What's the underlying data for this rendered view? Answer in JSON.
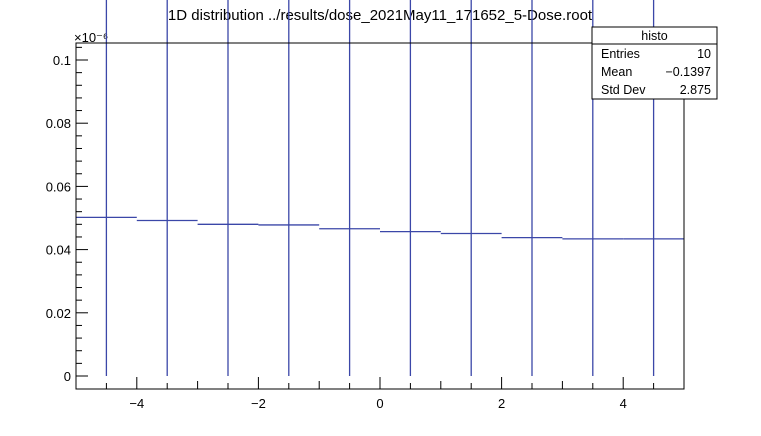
{
  "chart_data": {
    "type": "bar",
    "title": "1D distribution ../results/dose_2021May11_171652_5-Dose.root",
    "xlabel": "",
    "ylabel": "",
    "xlim": [
      -5,
      5
    ],
    "ylim": [
      0,
      0.105
    ],
    "y_exponent": "×10⁻⁶",
    "grid": false,
    "bins": [
      {
        "x": -4.5,
        "value": 0.0502,
        "error": 0.0999
      },
      {
        "x": -3.5,
        "value": 0.0492,
        "error": 0.098
      },
      {
        "x": -2.5,
        "value": 0.048,
        "error": 0.0958
      },
      {
        "x": -1.5,
        "value": 0.0478,
        "error": 0.0952
      },
      {
        "x": -0.5,
        "value": 0.0466,
        "error": 0.0926
      },
      {
        "x": 0.5,
        "value": 0.0457,
        "error": 0.0914
      },
      {
        "x": 1.5,
        "value": 0.0451,
        "error": 0.0897
      },
      {
        "x": 2.5,
        "value": 0.0438,
        "error": 0.087
      },
      {
        "x": 3.5,
        "value": 0.0434,
        "error": 0.087
      },
      {
        "x": 4.5,
        "value": 0.0434,
        "error": 0.087
      }
    ],
    "x_ticks": [
      {
        "value": -4,
        "label": "−4"
      },
      {
        "value": -2,
        "label": "−2"
      },
      {
        "value": 0,
        "label": "0"
      },
      {
        "value": 2,
        "label": "2"
      },
      {
        "value": 4,
        "label": "4"
      }
    ],
    "y_ticks": [
      {
        "value": 0,
        "label": "0"
      },
      {
        "value": 0.02,
        "label": "0.02"
      },
      {
        "value": 0.04,
        "label": "0.04"
      },
      {
        "value": 0.06,
        "label": "0.06"
      },
      {
        "value": 0.08,
        "label": "0.08"
      },
      {
        "value": 0.1,
        "label": "0.1"
      }
    ],
    "stats_box": {
      "title": "histo",
      "rows": [
        {
          "label": "Entries",
          "value": "10"
        },
        {
          "label": "Mean",
          "value": "−0.1397"
        },
        {
          "label": "Std Dev",
          "value": "2.875"
        }
      ]
    },
    "colors": {
      "line": "#3b47a8",
      "axis": "#000000"
    }
  }
}
